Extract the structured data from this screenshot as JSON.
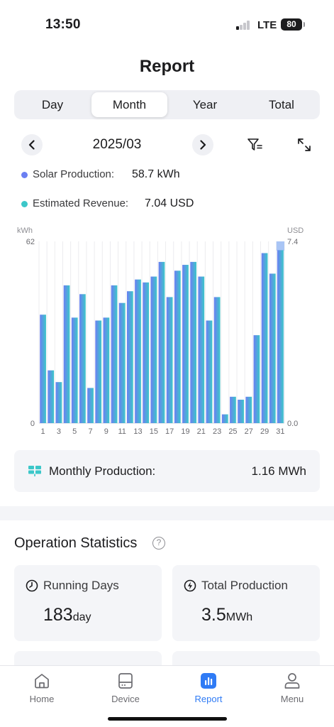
{
  "status_bar": {
    "time": "13:50",
    "network": "LTE",
    "battery": "80"
  },
  "page": {
    "title": "Report"
  },
  "segments": [
    {
      "label": "Day",
      "active": false
    },
    {
      "label": "Month",
      "active": true
    },
    {
      "label": "Year",
      "active": false
    },
    {
      "label": "Total",
      "active": false
    }
  ],
  "date_nav": {
    "current": "2025/03"
  },
  "legend": {
    "solar_label": "Solar Production:",
    "solar_value": "58.7 kWh",
    "revenue_label": "Estimated Revenue:",
    "revenue_value": "7.04 USD"
  },
  "chart_data": {
    "type": "bar",
    "y_left_label": "kWh",
    "y_right_label": "USD",
    "y_left_ticks": [
      "62",
      "0"
    ],
    "y_right_ticks": [
      "7.4",
      "0.0"
    ],
    "ylim": [
      0,
      62
    ],
    "y_right_lim": [
      0,
      7.4
    ],
    "grid": "vertical",
    "x_tick_labels": [
      "1",
      "3",
      "5",
      "7",
      "9",
      "11",
      "13",
      "15",
      "17",
      "19",
      "21",
      "23",
      "25",
      "27",
      "29",
      "31"
    ],
    "categories": [
      "1",
      "2",
      "3",
      "4",
      "5",
      "6",
      "7",
      "8",
      "9",
      "10",
      "11",
      "12",
      "13",
      "14",
      "15",
      "16",
      "17",
      "18",
      "19",
      "20",
      "21",
      "22",
      "23",
      "24",
      "25",
      "26",
      "27",
      "28",
      "29",
      "30",
      "31"
    ],
    "series": [
      {
        "values": [
          37,
          18,
          14,
          47,
          36,
          44,
          12,
          35,
          36,
          47,
          41,
          45,
          49,
          48,
          50,
          55,
          43,
          52,
          54,
          55,
          50,
          35,
          43,
          3,
          9,
          8,
          9,
          30,
          58,
          51,
          59
        ]
      }
    ],
    "colors": {
      "solar": "#6b7ff2",
      "revenue": "#3cc7c9",
      "highlight": "#a9c5f5"
    },
    "highlighted_category": "31"
  },
  "monthly": {
    "label": "Monthly Production:",
    "value": "1.16 MWh"
  },
  "operation": {
    "title": "Operation Statistics"
  },
  "stats": [
    {
      "label": "Running Days",
      "value": "183",
      "unit": "day",
      "icon": "clock-icon"
    },
    {
      "label": "Total Production",
      "value": "3.5",
      "unit": "MWh",
      "icon": "lightning-icon"
    }
  ],
  "tabs": [
    {
      "label": "Home",
      "icon": "home-icon",
      "active": false
    },
    {
      "label": "Device",
      "icon": "device-icon",
      "active": false
    },
    {
      "label": "Report",
      "icon": "report-icon",
      "active": true
    },
    {
      "label": "Menu",
      "icon": "user-icon",
      "active": false
    }
  ],
  "accent_color": "#2f7bf5"
}
